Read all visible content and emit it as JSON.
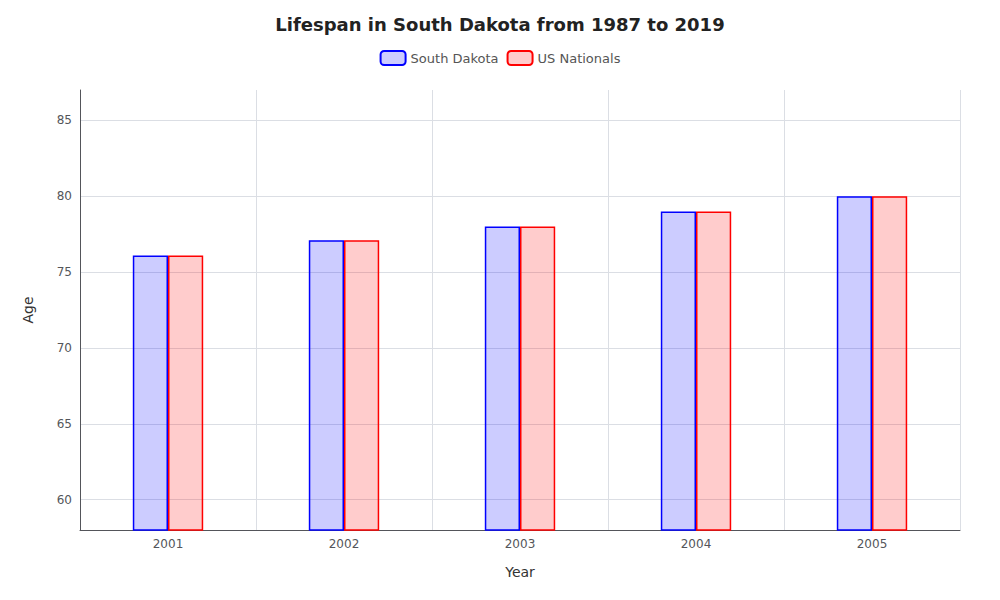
{
  "chart_data": {
    "type": "bar",
    "title": "Lifespan in South Dakota from 1987 to 2019",
    "x_label": "Year",
    "y_label": "Age",
    "categories": [
      "2001",
      "2002",
      "2003",
      "2004",
      "2005"
    ],
    "series": [
      {
        "name": "South Dakota",
        "color": "#0000ff",
        "values": [
          76.1,
          77.1,
          78.0,
          79.0,
          80.0
        ]
      },
      {
        "name": "US Nationals",
        "color": "#ff0000",
        "values": [
          76.1,
          77.1,
          78.0,
          79.0,
          80.0
        ]
      }
    ],
    "ylim": [
      58,
      87
    ],
    "yticks": [
      60,
      65,
      70,
      75,
      80,
      85
    ],
    "grid": true,
    "legend": "top"
  }
}
